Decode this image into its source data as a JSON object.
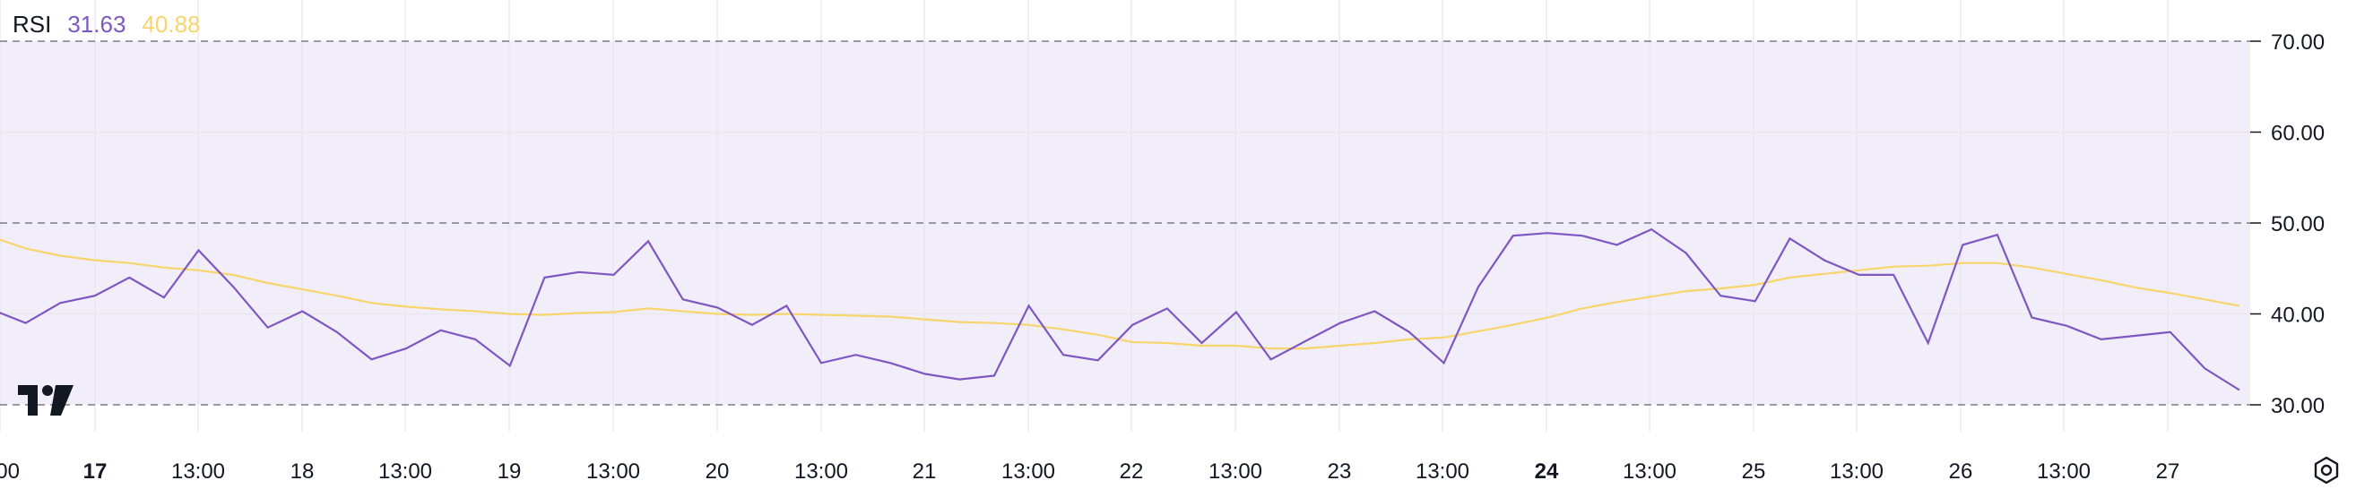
{
  "indicator": {
    "name": "RSI",
    "rsi_value": "31.63",
    "ma_value": "40.88"
  },
  "colors": {
    "rsi_line": "#7E57C2",
    "ma_line": "#F7D56C",
    "band_fill": "#F1EEF9",
    "grid": "#E6E6EC",
    "dashed": "#787B86",
    "text": "#131722"
  },
  "icons": [
    "tradingview-logo-icon",
    "settings-icon"
  ],
  "chart_data": {
    "type": "line",
    "ylim": [
      27,
      72
    ],
    "y_ticks": [
      "70.00",
      "60.00",
      "50.00",
      "40.00",
      "30.00"
    ],
    "y_tick_values": [
      70,
      60,
      50,
      40,
      30
    ],
    "dashed_levels": [
      70,
      50,
      30
    ],
    "band": [
      30,
      70
    ],
    "x_tick_labels": [
      "00",
      "17",
      "13:00",
      "18",
      "13:00",
      "19",
      "13:00",
      "20",
      "13:00",
      "21",
      "13:00",
      "22",
      "13:00",
      "23",
      "13:00",
      "24",
      "13:00",
      "25",
      "13:00",
      "26",
      "13:00",
      "27"
    ],
    "x_tick_bold": [
      "17",
      "24"
    ],
    "series": [
      {
        "values": [
          40.5,
          39.0,
          41.2,
          42.0,
          44.0,
          41.8,
          47.0,
          43.0,
          38.5,
          40.3,
          38.0,
          35.0,
          36.2,
          38.2,
          37.2,
          34.3,
          44.0,
          44.6,
          44.3,
          48.0,
          41.6,
          40.7,
          38.8,
          40.9,
          34.6,
          35.5,
          34.6,
          33.4,
          32.8,
          33.2,
          40.9,
          35.5,
          34.9,
          38.8,
          40.6,
          36.8,
          40.2,
          35.0,
          37.0,
          39.0,
          40.3,
          38.0,
          34.6,
          43.0,
          48.6,
          48.9,
          48.6,
          47.6,
          49.3,
          46.7,
          42.0,
          41.4,
          48.3,
          45.9,
          44.3,
          44.3,
          36.8,
          47.6,
          48.7,
          39.6,
          38.7,
          37.2,
          37.6,
          38.0,
          34.0,
          31.63
        ]
      },
      {
        "values": [
          48.5,
          47.2,
          46.4,
          45.9,
          45.6,
          45.1,
          44.8,
          44.3,
          43.4,
          42.7,
          42.0,
          41.2,
          40.8,
          40.5,
          40.3,
          40.0,
          39.9,
          40.1,
          40.2,
          40.6,
          40.3,
          40.0,
          39.9,
          40.0,
          39.9,
          39.8,
          39.7,
          39.4,
          39.1,
          39.0,
          38.8,
          38.3,
          37.7,
          36.9,
          36.8,
          36.5,
          36.5,
          36.2,
          36.2,
          36.5,
          36.8,
          37.2,
          37.4,
          38.1,
          38.8,
          39.6,
          40.6,
          41.3,
          41.9,
          42.5,
          42.8,
          43.2,
          44.0,
          44.4,
          44.8,
          45.2,
          45.3,
          45.6,
          45.6,
          45.1,
          44.4,
          43.7,
          42.9,
          42.3,
          41.6,
          40.88
        ]
      }
    ]
  }
}
